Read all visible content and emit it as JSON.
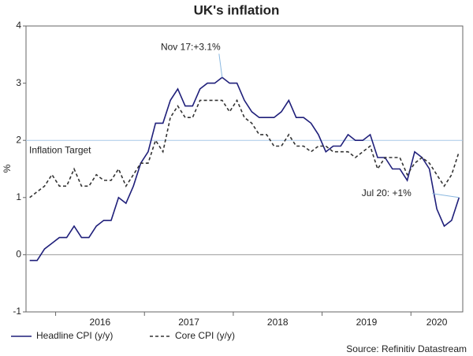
{
  "chart_data": {
    "type": "line",
    "title": "UK's inflation",
    "y_label": "%",
    "source": "Source: Refinitiv Datastream",
    "categories": [
      null,
      null,
      null,
      null,
      null,
      null,
      null,
      null,
      null,
      null,
      null,
      null,
      null,
      null,
      null,
      null,
      null,
      null,
      null,
      null,
      null,
      null,
      null,
      null,
      null,
      null,
      null,
      null,
      null,
      null,
      null,
      null,
      null,
      null,
      null,
      null,
      null,
      null,
      null,
      null,
      null,
      null,
      null,
      null,
      null,
      null,
      null,
      null,
      null,
      null,
      null,
      null,
      null,
      null,
      null,
      null,
      null,
      null,
      null
    ],
    "xticks": [
      {
        "value": 4,
        "label": "2016"
      },
      {
        "value": 16,
        "label": "2017"
      },
      {
        "value": 28,
        "label": "2018"
      },
      {
        "value": 40,
        "label": "2019"
      },
      {
        "value": 52,
        "label": "2020"
      }
    ],
    "series": [
      {
        "name": "Headline CPI (y/y)",
        "color": "#1f1f7a",
        "dash": false,
        "values": [
          -0.1,
          -0.1,
          0.1,
          0.2,
          0.3,
          0.3,
          0.5,
          0.3,
          0.3,
          0.5,
          0.6,
          0.6,
          1.0,
          0.9,
          1.2,
          1.6,
          1.8,
          2.3,
          2.3,
          2.7,
          2.9,
          2.6,
          2.6,
          2.9,
          3.0,
          3.0,
          3.1,
          3.0,
          3.0,
          2.7,
          2.5,
          2.4,
          2.4,
          2.4,
          2.5,
          2.7,
          2.4,
          2.4,
          2.3,
          2.1,
          1.8,
          1.9,
          1.9,
          2.1,
          2.0,
          2.0,
          2.1,
          1.7,
          1.7,
          1.5,
          1.5,
          1.3,
          1.8,
          1.7,
          1.5,
          0.8,
          0.5,
          0.6,
          1.0
        ]
      },
      {
        "name": "Core CPI (y/y)",
        "color": "#333333",
        "dash": true,
        "values": [
          1.0,
          1.1,
          1.2,
          1.4,
          1.2,
          1.2,
          1.5,
          1.2,
          1.2,
          1.4,
          1.3,
          1.3,
          1.5,
          1.2,
          1.4,
          1.6,
          1.6,
          2.0,
          1.8,
          2.4,
          2.6,
          2.4,
          2.4,
          2.7,
          2.7,
          2.7,
          2.7,
          2.5,
          2.7,
          2.4,
          2.3,
          2.1,
          2.1,
          1.9,
          1.9,
          2.1,
          1.9,
          1.9,
          1.8,
          1.9,
          1.9,
          1.8,
          1.8,
          1.8,
          1.7,
          1.8,
          1.9,
          1.5,
          1.7,
          1.7,
          1.7,
          1.4,
          1.6,
          1.7,
          1.6,
          1.4,
          1.2,
          1.4,
          1.8
        ]
      }
    ],
    "ylim": [
      -1,
      4
    ],
    "yticks": [
      -1,
      0,
      1,
      2,
      3,
      4
    ],
    "target": {
      "label": "Inflation Target",
      "value": 2
    },
    "annotations": [
      {
        "text": "Nov 17:+3.1%",
        "index": 26
      },
      {
        "text": "Jul 20: +1%",
        "index": 58
      }
    ],
    "legend": "bottom-left"
  }
}
